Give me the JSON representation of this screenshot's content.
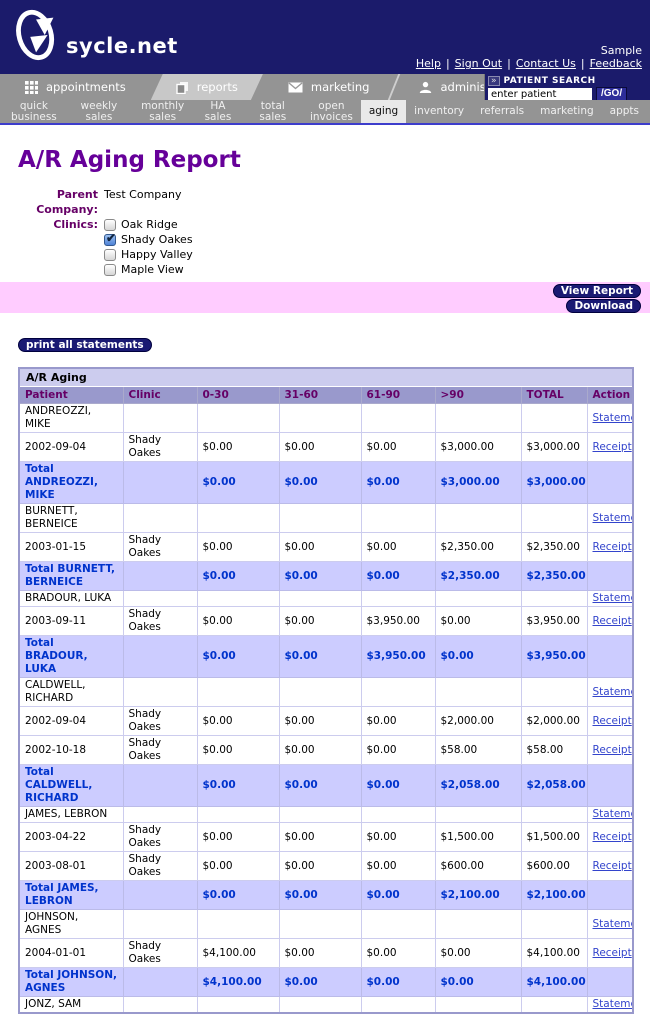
{
  "colors": {
    "header_navy": "#1b1b6b",
    "nav_gray": "#949494",
    "selected_tab_gray": "#c8c8c8",
    "pink_bar": "#ffccff",
    "title_purple": "#660099",
    "label_purple": "#660066",
    "table_border_purple": "#9999cc",
    "total_row_bg": "#ccccff",
    "total_row_text": "#0033cc",
    "link_blue": "#3344cc"
  },
  "header": {
    "logo_text": "sycle.net",
    "sample_label": "Sample",
    "links": {
      "help": "Help",
      "sign_out": "Sign Out",
      "contact_us": "Contact Us",
      "feedback": "Feedback"
    }
  },
  "nav": {
    "tabs": [
      {
        "label": "appointments",
        "icon": "grid-icon",
        "selected": false
      },
      {
        "label": "reports",
        "icon": "pages-icon",
        "selected": true
      },
      {
        "label": "marketing",
        "icon": "envelope-icon",
        "selected": false
      },
      {
        "label": "administration",
        "icon": "person-icon",
        "selected": false
      }
    ],
    "patient_search": {
      "chevron": "»",
      "label": "PATIENT SEARCH",
      "value": "enter patient",
      "go_label": "/GO/"
    },
    "subnav": [
      {
        "lines": [
          "quick",
          "business"
        ],
        "selected": false
      },
      {
        "lines": [
          "weekly sales"
        ],
        "selected": false
      },
      {
        "lines": [
          "monthly",
          "sales"
        ],
        "selected": false
      },
      {
        "lines": [
          "HA sales"
        ],
        "selected": false
      },
      {
        "lines": [
          "total sales"
        ],
        "selected": false
      },
      {
        "lines": [
          "open",
          "invoices"
        ],
        "selected": false
      },
      {
        "lines": [
          "aging"
        ],
        "selected": true
      },
      {
        "lines": [
          "inventory"
        ],
        "selected": false
      },
      {
        "lines": [
          "referrals"
        ],
        "selected": false
      },
      {
        "lines": [
          "marketing"
        ],
        "selected": false
      },
      {
        "lines": [
          "appts"
        ],
        "selected": false
      }
    ]
  },
  "report": {
    "title": "A/R Aging Report",
    "parent_company_label": "Parent Company:",
    "parent_company_value": "Test Company",
    "clinics_label": "Clinics:",
    "clinics": [
      {
        "name": "Oak Ridge",
        "checked": false
      },
      {
        "name": "Shady Oakes",
        "checked": true
      },
      {
        "name": "Happy Valley",
        "checked": false
      },
      {
        "name": "Maple View",
        "checked": false
      }
    ],
    "view_report_button": "View Report",
    "download_button": "Download",
    "print_all_button": "print all statements"
  },
  "table": {
    "title": "A/R Aging",
    "columns": [
      "Patient",
      "Clinic",
      "0-30",
      "31-60",
      "61-90",
      ">90",
      "TOTAL",
      "Action"
    ],
    "rows": [
      {
        "type": "name",
        "cells": [
          "ANDREOZZI, MIKE",
          "",
          "",
          "",
          "",
          "",
          "",
          "Statement"
        ]
      },
      {
        "type": "detail",
        "cells": [
          "2002-09-04",
          "Shady Oakes",
          "$0.00",
          "$0.00",
          "$0.00",
          "$3,000.00",
          "$3,000.00",
          "Receipt"
        ]
      },
      {
        "type": "total",
        "cells": [
          "Total ANDREOZZI, MIKE",
          "",
          "$0.00",
          "$0.00",
          "$0.00",
          "$3,000.00",
          "$3,000.00",
          ""
        ]
      },
      {
        "type": "name",
        "cells": [
          "BURNETT, BERNEICE",
          "",
          "",
          "",
          "",
          "",
          "",
          "Statement"
        ]
      },
      {
        "type": "detail",
        "cells": [
          "2003-01-15",
          "Shady Oakes",
          "$0.00",
          "$0.00",
          "$0.00",
          "$2,350.00",
          "$2,350.00",
          "Receipt"
        ]
      },
      {
        "type": "total",
        "cells": [
          "Total BURNETT, BERNEICE",
          "",
          "$0.00",
          "$0.00",
          "$0.00",
          "$2,350.00",
          "$2,350.00",
          ""
        ]
      },
      {
        "type": "name",
        "cells": [
          "BRADOUR, LUKA",
          "",
          "",
          "",
          "",
          "",
          "",
          "Statement"
        ]
      },
      {
        "type": "detail",
        "cells": [
          "2003-09-11",
          "Shady Oakes",
          "$0.00",
          "$0.00",
          "$3,950.00",
          "$0.00",
          "$3,950.00",
          "Receipt"
        ]
      },
      {
        "type": "total",
        "cells": [
          "Total BRADOUR, LUKA",
          "",
          "$0.00",
          "$0.00",
          "$3,950.00",
          "$0.00",
          "$3,950.00",
          ""
        ]
      },
      {
        "type": "name",
        "cells": [
          "CALDWELL, RICHARD",
          "",
          "",
          "",
          "",
          "",
          "",
          "Statement"
        ]
      },
      {
        "type": "detail",
        "cells": [
          "2002-09-04",
          "Shady Oakes",
          "$0.00",
          "$0.00",
          "$0.00",
          "$2,000.00",
          "$2,000.00",
          "Receipt"
        ]
      },
      {
        "type": "detail",
        "cells": [
          "2002-10-18",
          "Shady Oakes",
          "$0.00",
          "$0.00",
          "$0.00",
          "$58.00",
          "$58.00",
          "Receipt"
        ]
      },
      {
        "type": "total",
        "cells": [
          "Total CALDWELL, RICHARD",
          "",
          "$0.00",
          "$0.00",
          "$0.00",
          "$2,058.00",
          "$2,058.00",
          ""
        ]
      },
      {
        "type": "name",
        "cells": [
          "JAMES, LEBRON",
          "",
          "",
          "",
          "",
          "",
          "",
          "Statement"
        ]
      },
      {
        "type": "detail",
        "cells": [
          "2003-04-22",
          "Shady Oakes",
          "$0.00",
          "$0.00",
          "$0.00",
          "$1,500.00",
          "$1,500.00",
          "Receipt"
        ]
      },
      {
        "type": "detail",
        "cells": [
          "2003-08-01",
          "Shady Oakes",
          "$0.00",
          "$0.00",
          "$0.00",
          "$600.00",
          "$600.00",
          "Receipt"
        ]
      },
      {
        "type": "total",
        "cells": [
          "Total JAMES, LEBRON",
          "",
          "$0.00",
          "$0.00",
          "$0.00",
          "$2,100.00",
          "$2,100.00",
          ""
        ]
      },
      {
        "type": "name",
        "cells": [
          "JOHNSON, AGNES",
          "",
          "",
          "",
          "",
          "",
          "",
          "Statement"
        ]
      },
      {
        "type": "detail",
        "cells": [
          "2004-01-01",
          "Shady Oakes",
          "$4,100.00",
          "$0.00",
          "$0.00",
          "$0.00",
          "$4,100.00",
          "Receipt"
        ]
      },
      {
        "type": "total",
        "cells": [
          "Total JOHNSON, AGNES",
          "",
          "$4,100.00",
          "$0.00",
          "$0.00",
          "$0.00",
          "$4,100.00",
          ""
        ]
      },
      {
        "type": "name",
        "cells": [
          "JONZ, SAM",
          "",
          "",
          "",
          "",
          "",
          "",
          "Statement"
        ]
      }
    ]
  }
}
